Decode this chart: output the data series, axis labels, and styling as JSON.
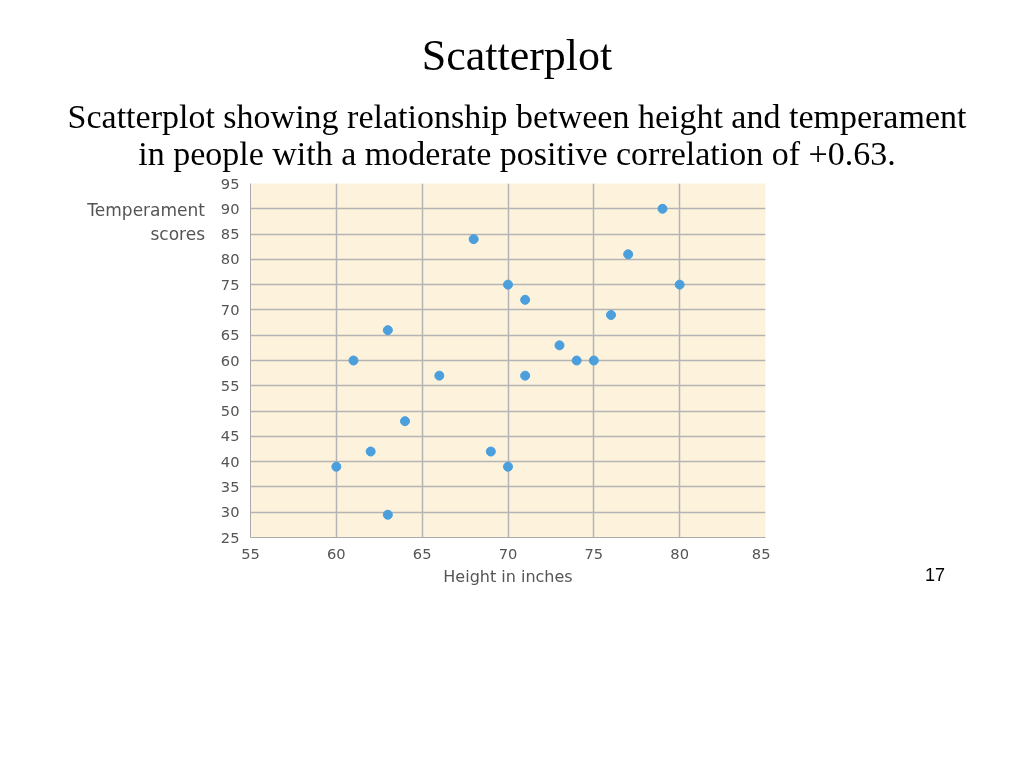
{
  "chart_data": {
    "type": "scatter",
    "title": "Scatterplot",
    "subtitle": "Scatterplot showing relationship between height and temperament in people with a moderate positive correlation of +0.63.",
    "xlabel": "Height in inches",
    "ylabel": "Temperament scores",
    "x": [
      79,
      68,
      77,
      70,
      71,
      80,
      76,
      63,
      73,
      61,
      74,
      75,
      66,
      71,
      64,
      62,
      69,
      60,
      70,
      63
    ],
    "series": [
      {
        "color": "#4a9fdc",
        "values": [
          90,
          84,
          81,
          75,
          72,
          75,
          69,
          66,
          63,
          60,
          60,
          60,
          57,
          57,
          48,
          42,
          42,
          39,
          39,
          29.5
        ]
      }
    ],
    "xlim": [
      55,
      85
    ],
    "xticks": [
      55,
      60,
      65,
      70,
      75,
      80,
      85
    ],
    "ylim": [
      25,
      95
    ],
    "yticks": [
      25,
      30,
      35,
      40,
      45,
      50,
      55,
      60,
      65,
      70,
      75,
      80,
      85,
      90,
      95
    ],
    "grid": true,
    "marker": "circle",
    "annotations": [
      "17"
    ]
  }
}
